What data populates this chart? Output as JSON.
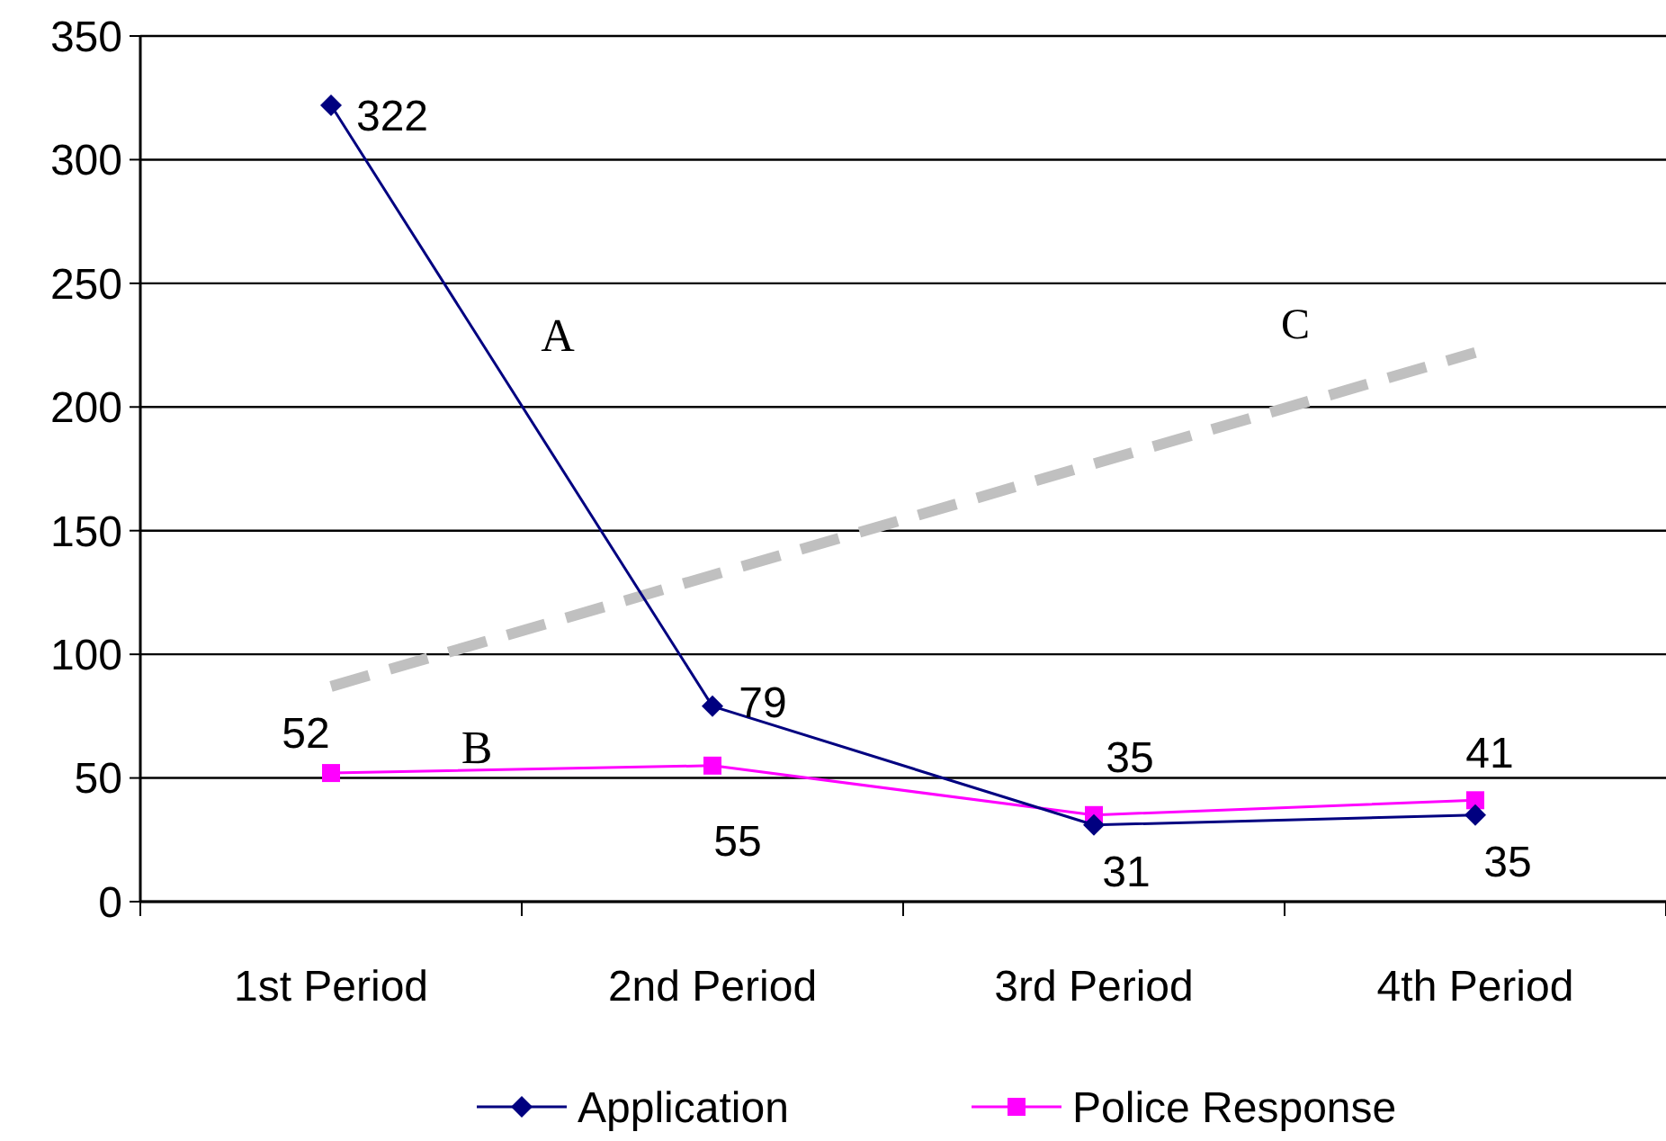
{
  "chart_data": {
    "type": "line",
    "categories": [
      "1st Period",
      "2nd Period",
      "3rd Period",
      "4th Period"
    ],
    "series": [
      {
        "name": "Application",
        "color": "#000080",
        "marker": "diamond",
        "values": [
          322,
          79,
          31,
          35
        ],
        "value_labels": [
          "322",
          "79",
          "31",
          "35"
        ]
      },
      {
        "name": "Police Response",
        "color": "#ff00ff",
        "marker": "square",
        "values": [
          52,
          55,
          35,
          41
        ],
        "value_labels": [
          "52",
          "55",
          "35",
          "41"
        ]
      },
      {
        "name": "C",
        "color": "#c0c0c0",
        "marker": "none",
        "line_style": "dashed",
        "values": [
          87,
          132,
          177,
          222
        ]
      }
    ],
    "ylim": [
      0,
      350
    ],
    "yticks": [
      0,
      50,
      100,
      150,
      200,
      250,
      300,
      350
    ],
    "grid": "y",
    "legend": "bottom",
    "annotations": [
      "A",
      "B"
    ]
  }
}
